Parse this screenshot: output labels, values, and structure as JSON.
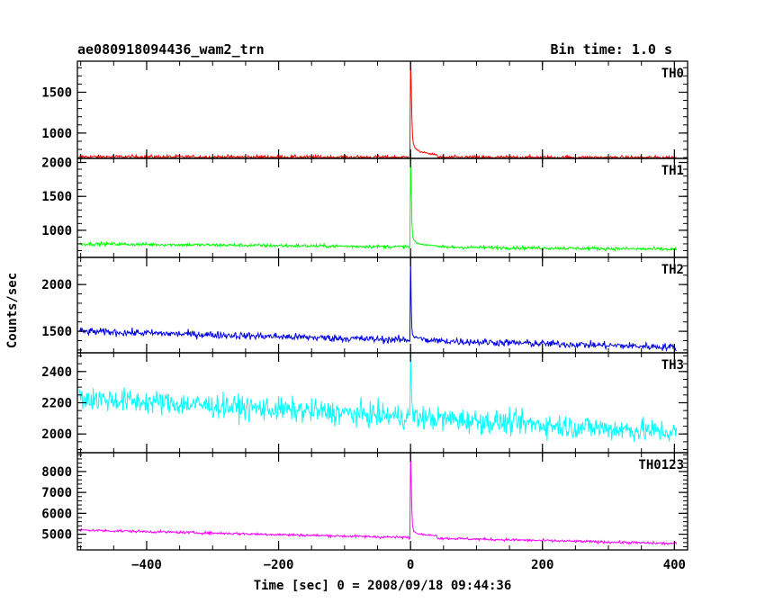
{
  "header": {
    "title": "ae080918094436_wam2_trn",
    "bin_time": "Bin time: 1.0 s"
  },
  "chart_data": {
    "type": "line",
    "title": "ae080918094436_wam2_trn",
    "xlabel": "Time [sec] 0 = 2008/09/18 09:44:36",
    "ylabel": "Counts/sec",
    "xlim": [
      -505,
      420
    ],
    "x_ticks": [
      -400,
      -200,
      0,
      200,
      400
    ],
    "x_start": -502,
    "x_end": 403,
    "x_step": 1,
    "burst_time": 0,
    "grid": false,
    "panels": [
      {
        "name": "TH0",
        "color": "#ff0000",
        "ylim": [
          690,
          1880
        ],
        "y_ticks": [
          1000,
          1500
        ],
        "baseline_start": 710,
        "baseline_end": 700,
        "noise": 16,
        "peak": 1880,
        "decay_points": [
          [
            0,
            1880
          ],
          [
            1,
            1600
          ],
          [
            2,
            1200
          ],
          [
            3,
            960
          ],
          [
            4,
            880
          ],
          [
            6,
            830
          ],
          [
            10,
            790
          ],
          [
            20,
            760
          ],
          [
            40,
            735
          ]
        ]
      },
      {
        "name": "TH1",
        "color": "#00ff00",
        "ylim": [
          600,
          2060
        ],
        "y_ticks": [
          1000,
          1500,
          2000
        ],
        "baseline_start": 800,
        "baseline_end": 720,
        "noise": 18,
        "peak": 2060,
        "decay_points": [
          [
            0,
            2060
          ],
          [
            1,
            1650
          ],
          [
            2,
            1150
          ],
          [
            3,
            920
          ],
          [
            5,
            850
          ],
          [
            10,
            810
          ],
          [
            20,
            790
          ],
          [
            40,
            775
          ]
        ]
      },
      {
        "name": "TH2",
        "color": "#0000e6",
        "ylim": [
          1270,
          2290
        ],
        "y_ticks": [
          1500,
          2000
        ],
        "baseline_start": 1500,
        "baseline_end": 1330,
        "noise": 28,
        "peak": 2290,
        "decay_points": [
          [
            0,
            2290
          ],
          [
            1,
            1800
          ],
          [
            2,
            1550
          ],
          [
            3,
            1470
          ],
          [
            6,
            1440
          ],
          [
            20,
            1420
          ]
        ]
      },
      {
        "name": "TH3",
        "color": "#00ffff",
        "ylim": [
          1880,
          2520
        ],
        "y_ticks": [
          2000,
          2200,
          2400
        ],
        "baseline_start": 2230,
        "baseline_end": 2010,
        "noise": 55,
        "peak": 2520,
        "decay_points": [
          [
            0,
            2520
          ],
          [
            1,
            2330
          ],
          [
            2,
            2200
          ],
          [
            3,
            2160
          ]
        ]
      },
      {
        "name": "TH0123",
        "color": "#ff00ff",
        "ylim": [
          4250,
          8900
        ],
        "y_ticks": [
          5000,
          6000,
          7000,
          8000
        ],
        "baseline_start": 5200,
        "baseline_end": 4550,
        "noise": 45,
        "peak": 8900,
        "decay_points": [
          [
            0,
            8900
          ],
          [
            1,
            7600
          ],
          [
            2,
            6200
          ],
          [
            3,
            5400
          ],
          [
            5,
            5150
          ],
          [
            10,
            5050
          ],
          [
            20,
            4980
          ],
          [
            40,
            4940
          ]
        ]
      }
    ]
  }
}
